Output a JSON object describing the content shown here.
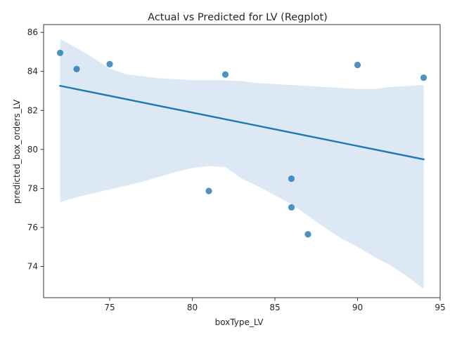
{
  "chart_data": {
    "type": "scatter",
    "title": "Actual vs Predicted for LV (Regplot)",
    "xlabel": "boxType_LV",
    "ylabel": "predicted_box_orders_LV",
    "xlim": [
      71.0,
      95.0
    ],
    "ylim": [
      72.4,
      86.4
    ],
    "xticks": [
      75,
      80,
      85,
      90,
      95
    ],
    "yticks": [
      74,
      76,
      78,
      80,
      82,
      84,
      86
    ],
    "grid": false,
    "legend": "none",
    "points": [
      {
        "x": 72,
        "y": 84.95
      },
      {
        "x": 73,
        "y": 84.12
      },
      {
        "x": 75,
        "y": 84.37
      },
      {
        "x": 81,
        "y": 77.87
      },
      {
        "x": 82,
        "y": 83.84
      },
      {
        "x": 86,
        "y": 78.5
      },
      {
        "x": 86,
        "y": 77.03
      },
      {
        "x": 87,
        "y": 75.65
      },
      {
        "x": 90,
        "y": 84.33
      },
      {
        "x": 94,
        "y": 83.68
      }
    ],
    "regression_line": {
      "x": [
        72,
        94
      ],
      "y": [
        83.26,
        79.49
      ]
    },
    "confidence_band": {
      "x": [
        72,
        73,
        74,
        75,
        76,
        77,
        78,
        79,
        80,
        81,
        82,
        83,
        84,
        85,
        86,
        87,
        88,
        89,
        90,
        91,
        92,
        93,
        94
      ],
      "upper": [
        85.65,
        85.2,
        84.7,
        84.15,
        83.85,
        83.75,
        83.65,
        83.6,
        83.55,
        83.55,
        83.55,
        83.5,
        83.4,
        83.35,
        83.3,
        83.25,
        83.2,
        83.15,
        83.1,
        83.1,
        83.2,
        83.25,
        83.3
      ],
      "lower": [
        77.3,
        77.55,
        77.75,
        77.95,
        78.15,
        78.35,
        78.6,
        78.85,
        79.05,
        79.15,
        79.1,
        78.5,
        78.1,
        77.65,
        77.2,
        76.6,
        76.0,
        75.45,
        75.0,
        74.5,
        74.05,
        73.5,
        72.85
      ]
    },
    "colors": {
      "point": "#1f77b4",
      "line": "#1f77b4",
      "band": "#dce8f3",
      "axes": "#262626"
    }
  }
}
